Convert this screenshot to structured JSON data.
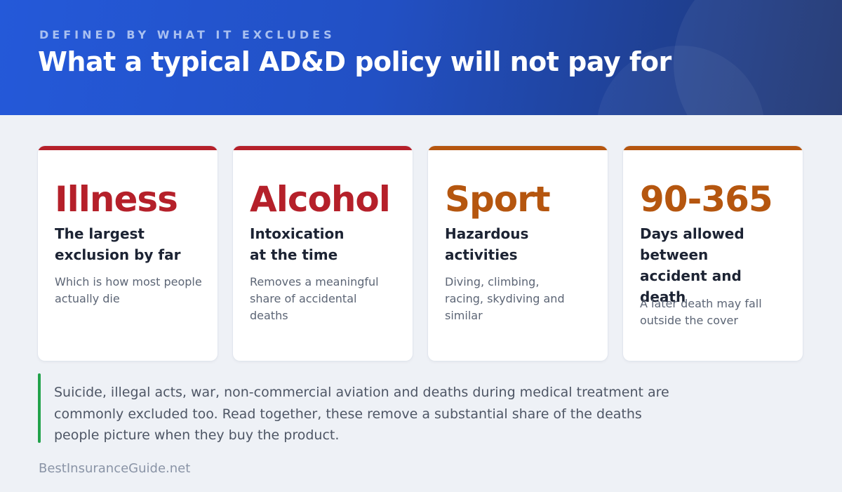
{
  "header": {
    "kicker": "DEFINED BY WHAT IT EXCLUDES",
    "title": "What a typical AD&D policy will not pay for",
    "background_color": "#2459d9"
  },
  "cards": [
    {
      "headline": "Illness",
      "subtitle": "The largest exclusion by far",
      "note": "Which is how most people actually die",
      "accent_color": "#b5202a"
    },
    {
      "headline": "Alcohol",
      "subtitle": "Intoxication at the time",
      "note": "Removes a meaningful share of accidental deaths",
      "accent_color": "#b5202a"
    },
    {
      "headline": "Sport",
      "subtitle": "Hazardous activities",
      "note": "Diving, climbing, racing, skydiving and similar",
      "accent_color": "#b5560f"
    },
    {
      "headline": "90-365",
      "subtitle": "Days allowed between accident and death",
      "note": "A later death may fall outside the cover",
      "accent_color": "#b5560f"
    }
  ],
  "callout": {
    "text": "Suicide, illegal acts, war, non-commercial aviation and deaths during medical treatment are commonly excluded too. Read together, these remove a substantial share of the deaths people picture when they buy the product.",
    "accent_color": "#22a24b"
  },
  "footer": {
    "brand": "BestInsuranceGuide.net"
  }
}
